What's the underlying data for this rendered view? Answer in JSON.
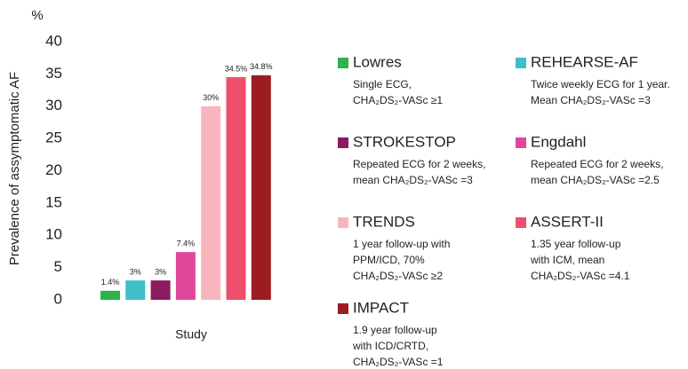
{
  "chart_data": {
    "type": "bar",
    "y_unit": "%",
    "ylabel": "Prevalence of assymptomatic AF",
    "xlabel": "Study",
    "categories": [
      "Lowres",
      "REHEARSE-AF",
      "STROKESTOP",
      "Engdahl",
      "TRENDS",
      "ASSERT-II",
      "IMPACT"
    ],
    "values": [
      1.4,
      3,
      3,
      7.4,
      30,
      34.5,
      34.8
    ],
    "value_labels": [
      "1.4%",
      "3%",
      "3%",
      "7.4%",
      "30%",
      "34.5%",
      "34.8%"
    ],
    "colors": [
      "#2db34a",
      "#3fbec8",
      "#8b1a5e",
      "#e0479b",
      "#f7b6bd",
      "#ee4f6c",
      "#9b1d21"
    ],
    "descriptions": [
      [
        "Single ECG,",
        "CHA₂DS₂-VASc ≥1"
      ],
      [
        "Twice weekly ECG for 1 year.",
        "Mean CHA₂DS₂-VASc =3"
      ],
      [
        "Repeated ECG for 2 weeks,",
        "mean CHA₂DS₂-VASc =3"
      ],
      [
        "Repeated ECG for 2 weeks,",
        "mean CHA₂DS₂-VASc =2.5"
      ],
      [
        "1 year follow-up with",
        "PPM/ICD, 70%",
        "CHA₂DS₂-VASc ≥2"
      ],
      [
        "1.35 year  follow-up",
        "with ICM, mean",
        "CHA₂DS₂-VASc =4.1"
      ],
      [
        "1.9 year follow-up",
        "with ICD/CRTD,",
        "CHA₂DS₂-VASc =1"
      ]
    ],
    "ylim": [
      0,
      40
    ],
    "yticks": [
      0,
      5,
      10,
      15,
      20,
      25,
      30,
      35,
      40
    ]
  }
}
